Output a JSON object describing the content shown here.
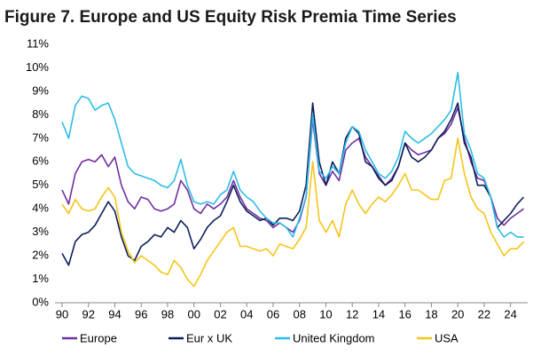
{
  "chart_data": {
    "type": "line",
    "title": "Figure 7. Europe and US Equity Risk Premia Time Series",
    "x": [
      1990,
      1990.5,
      1991,
      1991.5,
      1992,
      1992.5,
      1993,
      1993.5,
      1994,
      1994.5,
      1995,
      1995.5,
      1996,
      1996.5,
      1997,
      1997.5,
      1998,
      1998.5,
      1999,
      1999.5,
      2000,
      2000.5,
      2001,
      2001.5,
      2002,
      2002.5,
      2003,
      2003.5,
      2004,
      2004.5,
      2005,
      2005.5,
      2006,
      2006.5,
      2007,
      2007.5,
      2008,
      2008.5,
      2009,
      2009.5,
      2010,
      2010.5,
      2011,
      2011.5,
      2012,
      2012.5,
      2013,
      2013.5,
      2014,
      2014.5,
      2015,
      2015.5,
      2016,
      2016.5,
      2017,
      2017.5,
      2018,
      2018.5,
      2019,
      2019.5,
      2020,
      2020.5,
      2021,
      2021.5,
      2022,
      2022.5,
      2023,
      2023.5,
      2024,
      2024.5,
      2025
    ],
    "series": [
      {
        "name": "Europe",
        "color": "#7030a0",
        "values": [
          4.8,
          4.2,
          5.5,
          6.0,
          6.1,
          6.0,
          6.3,
          5.8,
          6.2,
          5.0,
          4.3,
          4.0,
          4.5,
          4.4,
          4.0,
          3.9,
          4.0,
          4.2,
          5.2,
          4.8,
          4.0,
          3.8,
          4.2,
          4.0,
          4.2,
          4.5,
          5.2,
          4.5,
          4.0,
          3.8,
          3.6,
          3.5,
          3.2,
          3.4,
          3.2,
          3.0,
          3.5,
          4.5,
          7.8,
          5.5,
          5.0,
          5.6,
          5.2,
          6.5,
          6.8,
          7.0,
          6.2,
          5.8,
          5.4,
          5.0,
          5.3,
          5.8,
          6.8,
          6.5,
          6.3,
          6.4,
          6.5,
          7.0,
          7.2,
          7.6,
          8.3,
          7.0,
          6.0,
          5.3,
          5.2,
          4.5,
          3.6,
          3.3,
          3.6,
          3.8,
          4.0
        ]
      },
      {
        "name": "Eur x UK",
        "color": "#0c1f5a",
        "values": [
          2.1,
          1.6,
          2.6,
          2.9,
          3.0,
          3.3,
          3.8,
          4.3,
          3.9,
          2.8,
          2.0,
          1.8,
          2.4,
          2.6,
          2.9,
          2.8,
          3.2,
          3.0,
          3.5,
          3.2,
          2.3,
          2.7,
          3.2,
          3.5,
          3.7,
          4.3,
          5.0,
          4.3,
          3.9,
          3.7,
          3.5,
          3.6,
          3.3,
          3.6,
          3.6,
          3.5,
          3.9,
          5.0,
          8.5,
          6.0,
          5.0,
          6.0,
          5.5,
          7.0,
          7.5,
          7.2,
          6.0,
          5.8,
          5.3,
          5.0,
          5.2,
          5.8,
          6.8,
          6.2,
          6.0,
          6.2,
          6.5,
          7.0,
          7.3,
          7.8,
          8.5,
          6.8,
          6.2,
          5.0,
          5.0,
          4.5,
          3.2,
          3.5,
          3.8,
          4.2,
          4.5
        ]
      },
      {
        "name": "United Kingdom",
        "color": "#2dbde8",
        "values": [
          7.7,
          7.0,
          8.4,
          8.8,
          8.7,
          8.2,
          8.4,
          8.5,
          7.8,
          6.8,
          5.8,
          5.5,
          5.4,
          5.3,
          5.2,
          5.0,
          4.9,
          5.2,
          6.1,
          5.0,
          4.3,
          4.2,
          4.3,
          4.2,
          4.6,
          4.8,
          5.6,
          4.8,
          4.5,
          4.3,
          3.9,
          3.6,
          3.4,
          3.4,
          3.2,
          2.8,
          3.6,
          4.5,
          8.0,
          5.6,
          5.3,
          5.8,
          5.5,
          6.8,
          7.5,
          7.3,
          6.5,
          6.0,
          5.5,
          5.3,
          5.6,
          6.2,
          7.3,
          7.0,
          6.8,
          7.0,
          7.2,
          7.5,
          7.8,
          8.2,
          9.8,
          7.2,
          6.5,
          5.5,
          5.3,
          4.5,
          3.2,
          2.8,
          3.0,
          2.8,
          2.8
        ]
      },
      {
        "name": "USA",
        "color": "#f5c518",
        "values": [
          4.2,
          3.8,
          4.4,
          4.0,
          3.9,
          4.0,
          4.5,
          4.9,
          4.5,
          3.0,
          2.2,
          1.7,
          2.0,
          1.8,
          1.6,
          1.3,
          1.2,
          1.8,
          1.5,
          1.0,
          0.7,
          1.2,
          1.8,
          2.2,
          2.6,
          3.0,
          3.2,
          2.4,
          2.4,
          2.3,
          2.2,
          2.3,
          2.0,
          2.5,
          2.4,
          2.3,
          2.7,
          3.2,
          6.0,
          3.5,
          3.0,
          3.5,
          2.8,
          4.2,
          4.8,
          4.2,
          3.8,
          4.2,
          4.5,
          4.3,
          4.6,
          5.0,
          5.5,
          4.8,
          4.8,
          4.6,
          4.4,
          4.4,
          5.2,
          5.3,
          7.0,
          5.5,
          4.5,
          4.0,
          3.8,
          3.0,
          2.5,
          2.0,
          2.3,
          2.3,
          2.6
        ]
      }
    ],
    "xlim": [
      1990,
      2025.3
    ],
    "xticks": [
      {
        "value": 1990,
        "label": "90"
      },
      {
        "value": 1992,
        "label": "92"
      },
      {
        "value": 1994,
        "label": "94"
      },
      {
        "value": 1996,
        "label": "96"
      },
      {
        "value": 1998,
        "label": "98"
      },
      {
        "value": 2000,
        "label": "00"
      },
      {
        "value": 2002,
        "label": "02"
      },
      {
        "value": 2004,
        "label": "04"
      },
      {
        "value": 2006,
        "label": "06"
      },
      {
        "value": 2008,
        "label": "08"
      },
      {
        "value": 2010,
        "label": "10"
      },
      {
        "value": 2012,
        "label": "12"
      },
      {
        "value": 2014,
        "label": "14"
      },
      {
        "value": 2016,
        "label": "16"
      },
      {
        "value": 2018,
        "label": "18"
      },
      {
        "value": 2020,
        "label": "20"
      },
      {
        "value": 2022,
        "label": "22"
      },
      {
        "value": 2024,
        "label": "24"
      }
    ],
    "ylim": [
      0,
      11
    ],
    "yticks": [
      {
        "value": 0,
        "label": "0%"
      },
      {
        "value": 1,
        "label": "1%"
      },
      {
        "value": 2,
        "label": "2%"
      },
      {
        "value": 3,
        "label": "3%"
      },
      {
        "value": 4,
        "label": "4%"
      },
      {
        "value": 5,
        "label": "5%"
      },
      {
        "value": 6,
        "label": "6%"
      },
      {
        "value": 7,
        "label": "7%"
      },
      {
        "value": 8,
        "label": "8%"
      },
      {
        "value": 9,
        "label": "9%"
      },
      {
        "value": 10,
        "label": "10%"
      },
      {
        "value": 11,
        "label": "11%"
      }
    ],
    "grid": false,
    "legend": "bottom"
  }
}
